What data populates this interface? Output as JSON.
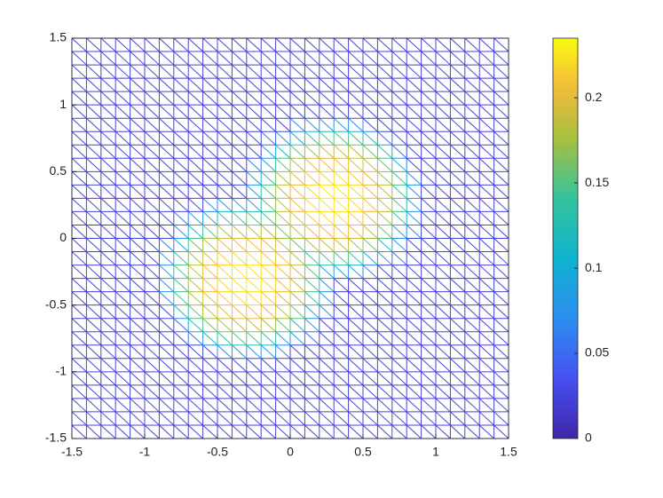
{
  "chart_data": {
    "type": "mesh",
    "xlim": [
      -1.5,
      1.5
    ],
    "ylim": [
      -1.5,
      1.5
    ],
    "xticks": [
      -1.5,
      -1,
      -0.5,
      0,
      0.5,
      1,
      1.5
    ],
    "yticks": [
      -1.5,
      -1,
      -0.5,
      0,
      0.5,
      1,
      1.5
    ],
    "clim": [
      0,
      0.235
    ],
    "cticks": [
      0,
      0.05,
      0.1,
      0.15,
      0.2
    ],
    "colormap": "parula"
  }
}
